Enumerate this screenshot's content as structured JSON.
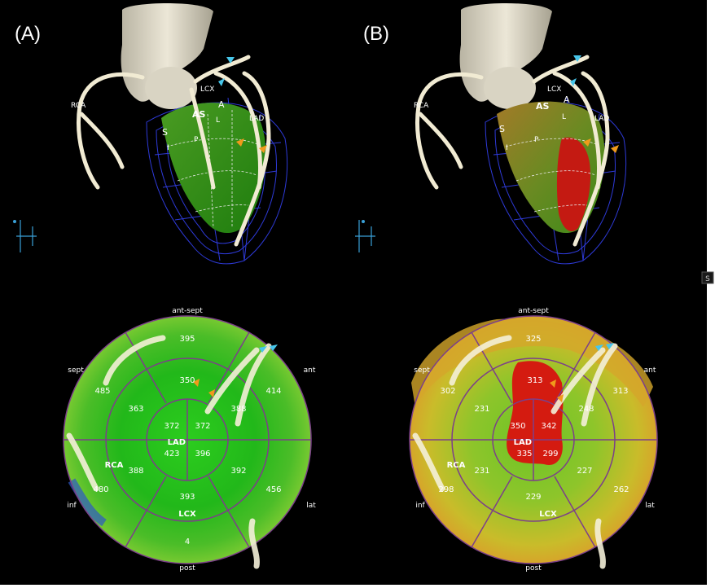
{
  "panels": [
    {
      "label": "(A)",
      "top_view": {
        "labels": {
          "rca": "RCA",
          "lcx": "LCX",
          "lad": "LAD",
          "as": "AS",
          "a": "A",
          "l": "L",
          "s": "S",
          "i": "I",
          "p": "P"
        }
      },
      "bullseye": {
        "directions": {
          "top": "ant-sept",
          "left_upper": "sept",
          "right_upper": "ant",
          "left_lower": "inf",
          "right_lower": "lat",
          "bottom": "post"
        },
        "territories": {
          "lad": "LAD",
          "rca": "RCA",
          "lcx": "LCX"
        },
        "segment_values": {
          "basal_ant_sept": "395",
          "basal_sept": "485",
          "basal_ant": "414",
          "basal_inf": "480",
          "basal_lat": "456",
          "basal_post": "4",
          "mid_ant_sept": "350",
          "mid_sept": "363",
          "mid_ant": "388",
          "mid_inf": "388",
          "mid_lat": "392",
          "mid_post": "393",
          "apex_ul": "372",
          "apex_ur": "372",
          "apex_ll": "423",
          "apex_lr": "396"
        }
      }
    },
    {
      "label": "(B)",
      "top_view": {
        "labels": {
          "rca": "RCA",
          "lcx": "LCX",
          "lad": "LAD",
          "as": "AS",
          "a": "A",
          "l": "L",
          "s": "S",
          "i": "I",
          "p": "P"
        }
      },
      "bullseye": {
        "directions": {
          "top": "ant-sept",
          "left_upper": "sept",
          "right_upper": "ant",
          "left_lower": "inf",
          "right_lower": "lat",
          "bottom": "post"
        },
        "territories": {
          "lad": "LAD",
          "rca": "RCA",
          "lcx": "LCX"
        },
        "segment_values": {
          "basal_ant_sept": "325",
          "basal_sept": "302",
          "basal_ant": "313",
          "basal_inf": "298",
          "basal_lat": "262",
          "basal_post": "",
          "mid_ant_sept": "313",
          "mid_sept": "231",
          "mid_ant": "248",
          "mid_inf": "231",
          "mid_lat": "227",
          "mid_post": "229",
          "apex_ul": "350",
          "apex_ur": "342",
          "apex_ll": "335",
          "apex_lr": "299"
        }
      }
    }
  ],
  "edge_marks": {
    "s_mark": "S"
  },
  "colors": {
    "myocardium_green": "#1fae18",
    "ischemia_red": "#d41b10",
    "border_yellow": "#c9b824",
    "vessel_white": "#f1ebd3",
    "mesh_blue": "#2e3ad8"
  }
}
